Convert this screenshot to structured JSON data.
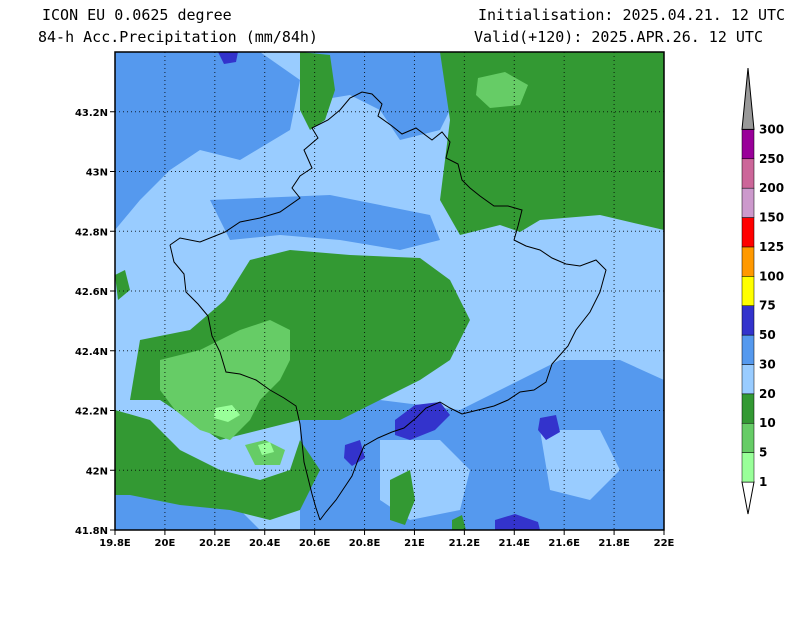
{
  "header": {
    "model": "ICON EU 0.0625 degree",
    "field": "84-h Acc.Precipitation (mm/84h)",
    "init": "Initialisation: 2025.04.21. 12 UTC",
    "valid": "Valid(+120): 2025.APR.26. 12 UTC"
  },
  "map": {
    "lon_range": [
      19.8,
      22.0
    ],
    "lat_range": [
      41.8,
      43.4
    ],
    "lon_ticks": [
      "19.8E",
      "20E",
      "20.2E",
      "20.4E",
      "20.6E",
      "20.8E",
      "21E",
      "21.2E",
      "21.4E",
      "21.6E",
      "21.8E",
      "22E"
    ],
    "lat_ticks": [
      "41.8N",
      "42N",
      "42.2N",
      "42.4N",
      "42.6N",
      "42.8N",
      "43N",
      "43.2N"
    ],
    "gridlines": "dotted",
    "background_class_color": "#99ccff"
  },
  "legend": {
    "levels": [
      {
        "label": "1",
        "color": "#99ff99"
      },
      {
        "label": "5",
        "color": "#66cc66"
      },
      {
        "label": "10",
        "color": "#339933"
      },
      {
        "label": "20",
        "color": "#99ccff"
      },
      {
        "label": "30",
        "color": "#5599ee"
      },
      {
        "label": "50",
        "color": "#3333cc"
      },
      {
        "label": "75",
        "color": "#ffff00"
      },
      {
        "label": "100",
        "color": "#ff9900"
      },
      {
        "label": "125",
        "color": "#ff0000"
      },
      {
        "label": "150",
        "color": "#cc99cc"
      },
      {
        "label": "200",
        "color": "#cc6699"
      },
      {
        "label": "250",
        "color": "#990099"
      },
      {
        "label": "300",
        "color": "#999999"
      }
    ]
  }
}
